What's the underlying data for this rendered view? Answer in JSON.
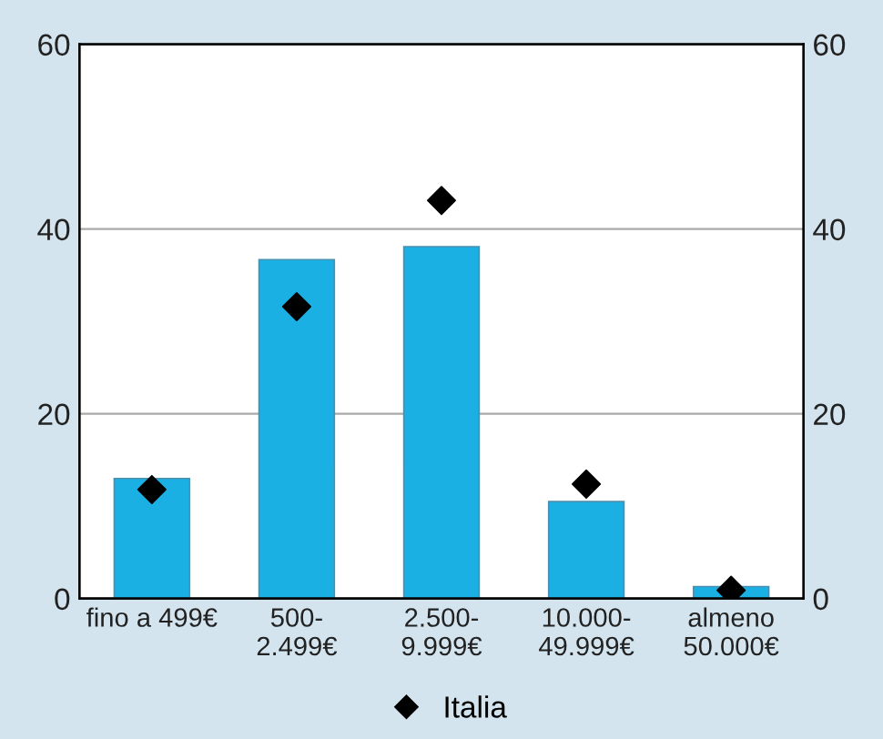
{
  "chart_data": {
    "type": "bar",
    "categories": [
      "fino a 499€",
      "500-\n2.499€",
      "2.500-\n9.999€",
      "10.000-\n49.999€",
      "almeno\n50.000€"
    ],
    "series": [
      {
        "color": "#1ab0e4",
        "values": [
          13.0,
          36.7,
          38.1,
          10.5,
          1.3
        ]
      },
      {
        "type": "scatter",
        "name": "Italia",
        "color": "#000000",
        "marker": "diamond",
        "values": [
          11.8,
          31.6,
          43.1,
          12.4,
          0.9
        ]
      }
    ],
    "ylim": [
      0,
      60
    ],
    "yticks": [
      0,
      20,
      40,
      60
    ],
    "y2lim": [
      0,
      60
    ],
    "y2ticks": [
      0,
      20,
      40,
      60
    ],
    "grid": "y",
    "legend": "bottom"
  }
}
